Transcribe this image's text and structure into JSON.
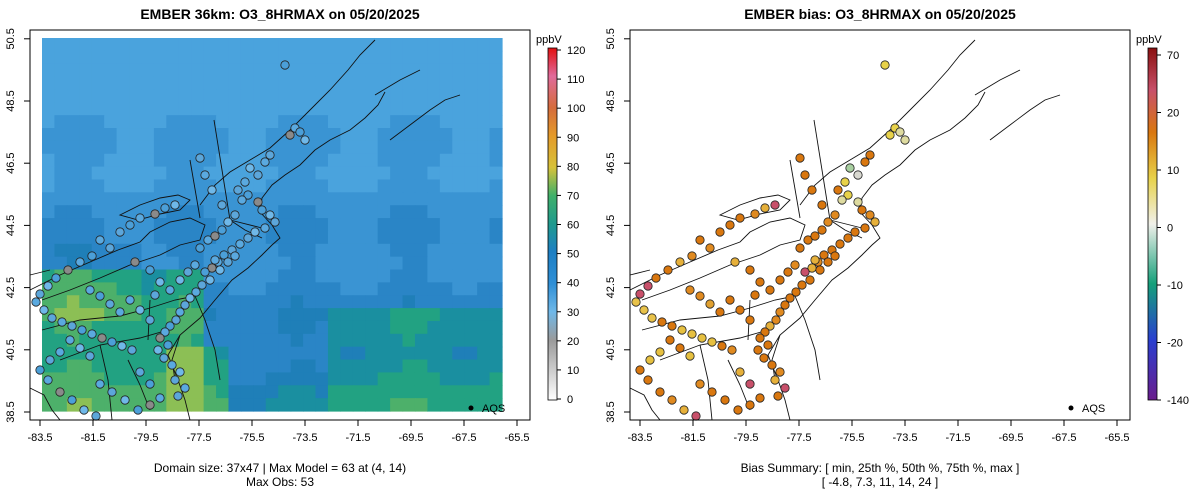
{
  "left": {
    "title": "EMBER 36km: O3_8HRMAX on 05/20/2025",
    "unit": "ppbV",
    "x_ticks": [
      "-83.5",
      "-81.5",
      "-79.5",
      "-77.5",
      "-75.5",
      "-73.5",
      "-71.5",
      "-69.5",
      "-67.5",
      "-65.5"
    ],
    "y_ticks": [
      "38.5",
      "40.5",
      "42.5",
      "44.5",
      "46.5",
      "48.5",
      "50.5"
    ],
    "colorbar_ticks": [
      "0",
      "10",
      "20",
      "30",
      "40",
      "50",
      "60",
      "70",
      "80",
      "90",
      "100",
      "110",
      "120"
    ],
    "legend_label": "AQS",
    "footer_line1": "Domain size: 37x47 | Max Model = 63 at (4, 14)",
    "footer_line2": "Max Obs: 53"
  },
  "right": {
    "title": "EMBER bias: O3_8HRMAX on 05/20/2025",
    "unit": "ppbV",
    "x_ticks": [
      "-83.5",
      "-81.5",
      "-79.5",
      "-77.5",
      "-75.5",
      "-73.5",
      "-71.5",
      "-69.5",
      "-67.5",
      "-65.5"
    ],
    "y_ticks": [
      "38.5",
      "40.5",
      "42.5",
      "44.5",
      "46.5",
      "48.5",
      "50.5"
    ],
    "colorbar_ticks": [
      "70",
      "20",
      "10",
      "0",
      "-10",
      "-20",
      "-140"
    ],
    "legend_label": "AQS",
    "footer_line1": "Bias Summary: [ min, 25th %, 50th %, 75th %, max ]",
    "footer_line2": "[ -4.8,   7.3,   11,   14,   24 ]"
  },
  "colors": {
    "model_field_low": "#3a8fd0",
    "model_field_mid": "#1e88b8",
    "model_field_high": "#2aa66a",
    "obs_blue": "#5aa9df",
    "bias_orange": "#d9770f",
    "bias_yellow": "#e8d24a"
  }
}
